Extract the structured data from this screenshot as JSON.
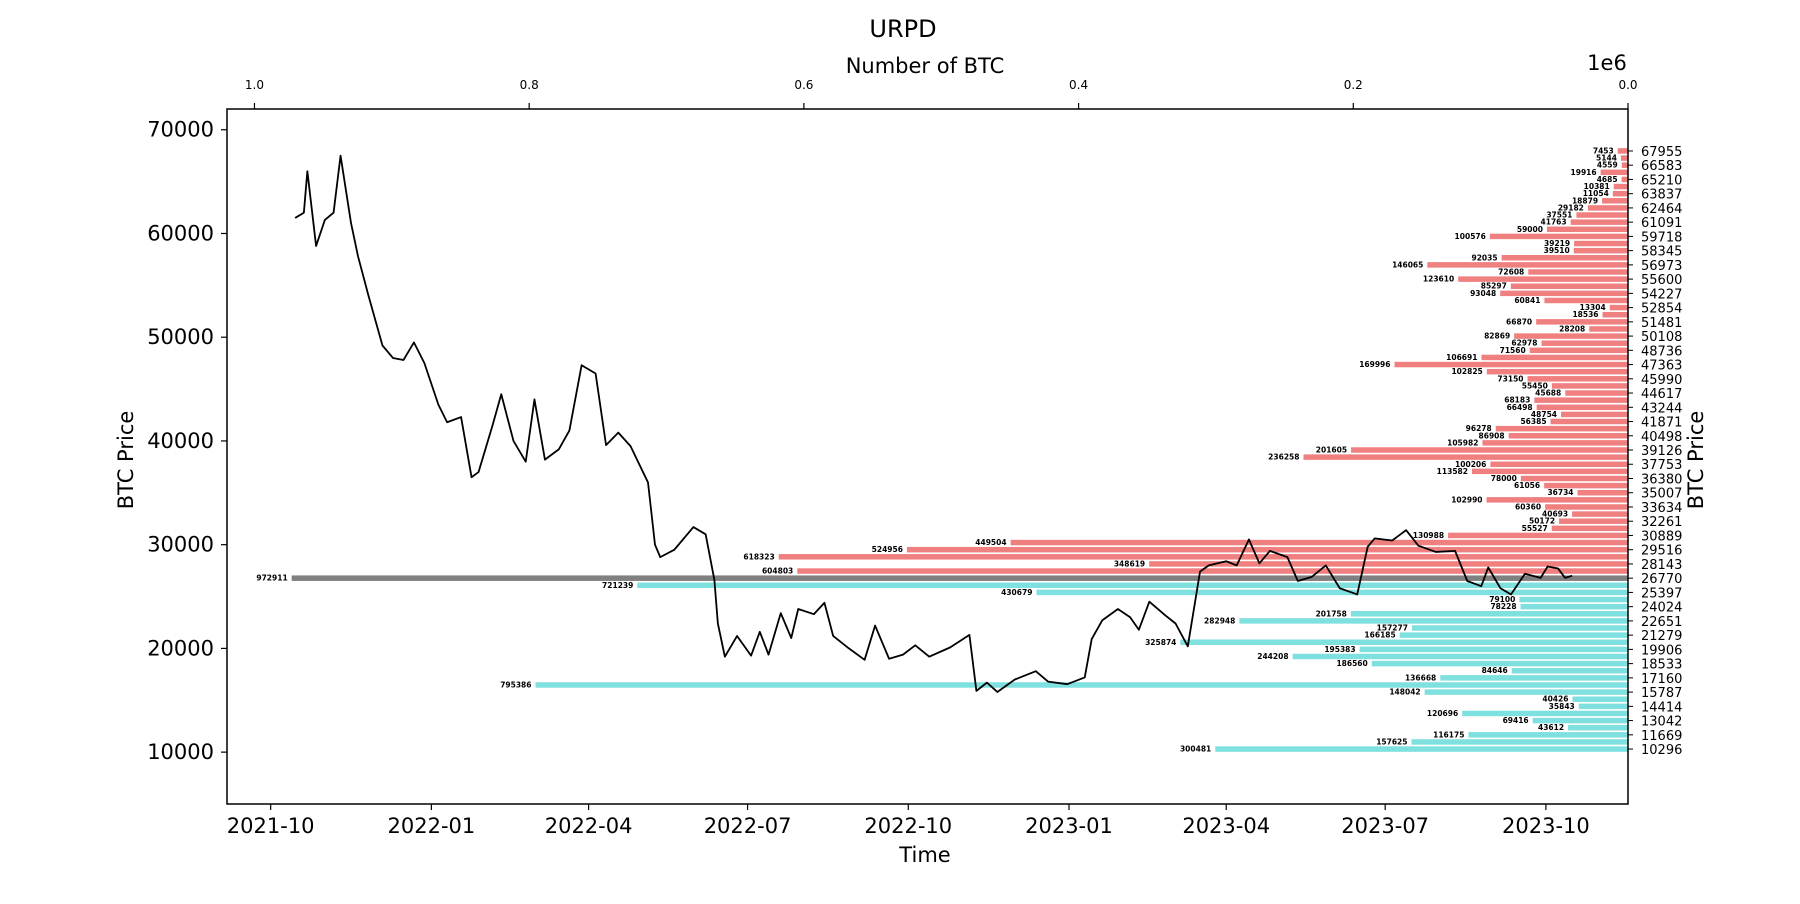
{
  "chart_data": {
    "type": "line",
    "title": "URPD",
    "xlabel": "Time",
    "ylabel": "BTC Price",
    "top_xlabel": "Number of BTC",
    "top_x_offset_label": "1e6",
    "right_ylabel": "BTC Price",
    "ylim": [
      5000,
      72000
    ],
    "yticks": [
      10000,
      20000,
      30000,
      40000,
      50000,
      60000,
      70000
    ],
    "xlim": [
      "2021-09-06",
      "2023-11-17"
    ],
    "xticks": [
      "2021-10",
      "2022-01",
      "2022-04",
      "2022-07",
      "2022-10",
      "2023-01",
      "2023-04",
      "2023-07",
      "2023-10"
    ],
    "top_xlim": [
      1.02,
      0.0
    ],
    "top_xticks": [
      "1.0",
      "0.8",
      "0.6",
      "0.4",
      "0.2",
      "0.0"
    ],
    "grid": false,
    "colors": {
      "price_line": "#000000",
      "above_current": "#f08080",
      "below_current": "#7fe0e0",
      "current": "#808080"
    },
    "series": [
      {
        "values": [
          [
            "2021-10-15",
            61500
          ],
          [
            "2021-10-20",
            62000
          ],
          [
            "2021-10-22",
            66000
          ],
          [
            "2021-10-27",
            58800
          ],
          [
            "2021-11-01",
            61300
          ],
          [
            "2021-11-06",
            62000
          ],
          [
            "2021-11-10",
            67500
          ],
          [
            "2021-11-16",
            61000
          ],
          [
            "2021-11-20",
            57800
          ],
          [
            "2021-11-26",
            54000
          ],
          [
            "2021-12-04",
            49200
          ],
          [
            "2021-12-10",
            48000
          ],
          [
            "2021-12-16",
            47800
          ],
          [
            "2021-12-22",
            49500
          ],
          [
            "2021-12-28",
            47500
          ],
          [
            "2022-01-05",
            43500
          ],
          [
            "2022-01-10",
            41800
          ],
          [
            "2022-01-18",
            42300
          ],
          [
            "2022-01-24",
            36500
          ],
          [
            "2022-01-28",
            37000
          ],
          [
            "2022-02-05",
            41500
          ],
          [
            "2022-02-10",
            44500
          ],
          [
            "2022-02-17",
            40000
          ],
          [
            "2022-02-24",
            38000
          ],
          [
            "2022-03-01",
            44000
          ],
          [
            "2022-03-07",
            38200
          ],
          [
            "2022-03-15",
            39200
          ],
          [
            "2022-03-21",
            41000
          ],
          [
            "2022-03-28",
            47300
          ],
          [
            "2022-04-05",
            46500
          ],
          [
            "2022-04-11",
            39600
          ],
          [
            "2022-04-18",
            40800
          ],
          [
            "2022-04-25",
            39500
          ],
          [
            "2022-05-05",
            36000
          ],
          [
            "2022-05-09",
            30000
          ],
          [
            "2022-05-12",
            28800
          ],
          [
            "2022-05-20",
            29500
          ],
          [
            "2022-05-31",
            31700
          ],
          [
            "2022-06-07",
            31000
          ],
          [
            "2022-06-12",
            26600
          ],
          [
            "2022-06-14",
            22400
          ],
          [
            "2022-06-18",
            19200
          ],
          [
            "2022-06-25",
            21200
          ],
          [
            "2022-07-03",
            19300
          ],
          [
            "2022-07-08",
            21600
          ],
          [
            "2022-07-13",
            19400
          ],
          [
            "2022-07-20",
            23400
          ],
          [
            "2022-07-26",
            21000
          ],
          [
            "2022-07-30",
            23800
          ],
          [
            "2022-08-08",
            23300
          ],
          [
            "2022-08-14",
            24400
          ],
          [
            "2022-08-19",
            21200
          ],
          [
            "2022-08-28",
            20000
          ],
          [
            "2022-09-06",
            18900
          ],
          [
            "2022-09-12",
            22200
          ],
          [
            "2022-09-20",
            19000
          ],
          [
            "2022-09-28",
            19400
          ],
          [
            "2022-10-05",
            20300
          ],
          [
            "2022-10-13",
            19200
          ],
          [
            "2022-10-25",
            20100
          ],
          [
            "2022-11-05",
            21300
          ],
          [
            "2022-11-09",
            15900
          ],
          [
            "2022-11-15",
            16700
          ],
          [
            "2022-11-21",
            15800
          ],
          [
            "2022-12-01",
            17000
          ],
          [
            "2022-12-13",
            17800
          ],
          [
            "2022-12-20",
            16800
          ],
          [
            "2022-12-31",
            16550
          ],
          [
            "2023-01-10",
            17200
          ],
          [
            "2023-01-14",
            20900
          ],
          [
            "2023-01-20",
            22700
          ],
          [
            "2023-01-29",
            23800
          ],
          [
            "2023-02-05",
            23000
          ],
          [
            "2023-02-10",
            21800
          ],
          [
            "2023-02-16",
            24500
          ],
          [
            "2023-02-25",
            23200
          ],
          [
            "2023-03-03",
            22400
          ],
          [
            "2023-03-10",
            20200
          ],
          [
            "2023-03-14",
            24300
          ],
          [
            "2023-03-17",
            27400
          ],
          [
            "2023-03-22",
            28000
          ],
          [
            "2023-04-01",
            28400
          ],
          [
            "2023-04-07",
            28000
          ],
          [
            "2023-04-14",
            30500
          ],
          [
            "2023-04-20",
            28200
          ],
          [
            "2023-04-26",
            29400
          ],
          [
            "2023-05-06",
            28800
          ],
          [
            "2023-05-12",
            26500
          ],
          [
            "2023-05-20",
            26900
          ],
          [
            "2023-05-28",
            28000
          ],
          [
            "2023-06-05",
            25800
          ],
          [
            "2023-06-15",
            25200
          ],
          [
            "2023-06-21",
            29800
          ],
          [
            "2023-06-25",
            30600
          ],
          [
            "2023-07-05",
            30400
          ],
          [
            "2023-07-13",
            31400
          ],
          [
            "2023-07-20",
            29900
          ],
          [
            "2023-07-30",
            29300
          ],
          [
            "2023-08-10",
            29400
          ],
          [
            "2023-08-17",
            26500
          ],
          [
            "2023-08-25",
            26000
          ],
          [
            "2023-08-29",
            27800
          ],
          [
            "2023-09-05",
            25800
          ],
          [
            "2023-09-11",
            25200
          ],
          [
            "2023-09-19",
            27200
          ],
          [
            "2023-09-28",
            26800
          ],
          [
            "2023-10-02",
            27900
          ],
          [
            "2023-10-08",
            27700
          ],
          [
            "2023-10-12",
            26800
          ],
          [
            "2023-10-16",
            27000
          ]
        ]
      }
    ],
    "urpd_bars": {
      "prices": [
        67955,
        66583,
        65210,
        63837,
        62464,
        61091,
        59718,
        58345,
        56973,
        55600,
        54227,
        52854,
        51481,
        50108,
        48736,
        47363,
        45990,
        44617,
        43244,
        41871,
        40498,
        39126,
        37753,
        36380,
        35007,
        33634,
        32261,
        30889,
        29516,
        28143,
        26770,
        25397,
        24024,
        22651,
        21279,
        19906,
        18533,
        17160,
        15787,
        14414,
        13042,
        11669,
        10296
      ],
      "current_price": 26770,
      "bars": [
        {
          "y": 67955,
          "value": 7453,
          "label": "7453"
        },
        {
          "y": 67269,
          "value": 5144,
          "label": "5144"
        },
        {
          "y": 66583,
          "value": 4559,
          "label": "4559"
        },
        {
          "y": 65897,
          "value": 19916,
          "label": "19916"
        },
        {
          "y": 65210,
          "value": 4685,
          "label": "4685"
        },
        {
          "y": 64524,
          "value": 10381,
          "label": "10381"
        },
        {
          "y": 63837,
          "value": 11054,
          "label": "11054"
        },
        {
          "y": 63151,
          "value": 18879,
          "label": "18879"
        },
        {
          "y": 62464,
          "value": 29182,
          "label": "29182"
        },
        {
          "y": 61778,
          "value": 37551,
          "label": "37551"
        },
        {
          "y": 61091,
          "value": 41763,
          "label": "41763"
        },
        {
          "y": 60405,
          "value": 59000,
          "label": "59000"
        },
        {
          "y": 59718,
          "value": 100576,
          "label": "100576"
        },
        {
          "y": 59032,
          "value": 39219,
          "label": "39219"
        },
        {
          "y": 58345,
          "value": 39510,
          "label": "39510"
        },
        {
          "y": 57659,
          "value": 92035,
          "label": "92035"
        },
        {
          "y": 56973,
          "value": 146065,
          "label": "146065"
        },
        {
          "y": 56287,
          "value": 72608,
          "label": "72608"
        },
        {
          "y": 55600,
          "value": 123610,
          "label": "123610"
        },
        {
          "y": 54914,
          "value": 85297,
          "label": "85297"
        },
        {
          "y": 54227,
          "value": 93048,
          "label": "93048"
        },
        {
          "y": 53541,
          "value": 60841,
          "label": "60841"
        },
        {
          "y": 52854,
          "value": 13304,
          "label": "13304"
        },
        {
          "y": 52168,
          "value": 18536,
          "label": "18536"
        },
        {
          "y": 51481,
          "value": 66870,
          "label": "66870"
        },
        {
          "y": 50795,
          "value": 28208,
          "label": "28208"
        },
        {
          "y": 50108,
          "value": 82869,
          "label": "82869"
        },
        {
          "y": 49422,
          "value": 62978,
          "label": "62978"
        },
        {
          "y": 48736,
          "value": 71560,
          "label": "71560"
        },
        {
          "y": 48050,
          "value": 106691,
          "label": "106691"
        },
        {
          "y": 47363,
          "value": 169996,
          "label": "169996"
        },
        {
          "y": 46677,
          "value": 102825,
          "label": "102825"
        },
        {
          "y": 45990,
          "value": 73150,
          "label": "73150"
        },
        {
          "y": 45304,
          "value": 55450,
          "label": "55450"
        },
        {
          "y": 44617,
          "value": 45688,
          "label": "45688"
        },
        {
          "y": 43931,
          "value": 68183,
          "label": "68183"
        },
        {
          "y": 43244,
          "value": 66498,
          "label": "66498"
        },
        {
          "y": 42558,
          "value": 48754,
          "label": "48754"
        },
        {
          "y": 41871,
          "value": 56385,
          "label": "56385"
        },
        {
          "y": 41185,
          "value": 96278,
          "label": "96278"
        },
        {
          "y": 40498,
          "value": 86908,
          "label": "86908"
        },
        {
          "y": 39812,
          "value": 105982,
          "label": "105982"
        },
        {
          "y": 39126,
          "value": 201605,
          "label": "201605"
        },
        {
          "y": 38440,
          "value": 236258,
          "label": "236258"
        },
        {
          "y": 37753,
          "value": 100206,
          "label": "100206"
        },
        {
          "y": 37067,
          "value": 113582,
          "label": "113582"
        },
        {
          "y": 36380,
          "value": 78000,
          "label": "78000"
        },
        {
          "y": 35694,
          "value": 61056,
          "label": "61056"
        },
        {
          "y": 35007,
          "value": 36734,
          "label": "36734"
        },
        {
          "y": 34321,
          "value": 102990,
          "label": "102990"
        },
        {
          "y": 33634,
          "value": 60360,
          "label": "60360"
        },
        {
          "y": 32948,
          "value": 40693,
          "label": "40693"
        },
        {
          "y": 32261,
          "value": 50172,
          "label": "50172"
        },
        {
          "y": 31575,
          "value": 55527,
          "label": "55527"
        },
        {
          "y": 30889,
          "value": 130988,
          "label": "130988"
        },
        {
          "y": 30203,
          "value": 449504,
          "label": "449504"
        },
        {
          "y": 29516,
          "value": 524956,
          "label": "524956"
        },
        {
          "y": 28830,
          "value": 618323,
          "label": "618323"
        },
        {
          "y": 28143,
          "value": 348619,
          "label": "348619"
        },
        {
          "y": 27457,
          "value": 604803,
          "label": "604803"
        },
        {
          "y": 26770,
          "value": 972911,
          "label": "972911"
        },
        {
          "y": 26084,
          "value": 721239,
          "label": "721239"
        },
        {
          "y": 25397,
          "value": 430679,
          "label": "430679"
        },
        {
          "y": 24711,
          "value": 79100,
          "label": "79100"
        },
        {
          "y": 24024,
          "value": 78228,
          "label": "78228"
        },
        {
          "y": 23338,
          "value": 201758,
          "label": "201758"
        },
        {
          "y": 22651,
          "value": 282948,
          "label": "282948"
        },
        {
          "y": 21965,
          "value": 157277,
          "label": "157277"
        },
        {
          "y": 21279,
          "value": 166185,
          "label": "166185"
        },
        {
          "y": 20593,
          "value": 325874,
          "label": "325874"
        },
        {
          "y": 19906,
          "value": 195383,
          "label": "195383"
        },
        {
          "y": 19220,
          "value": 244208,
          "label": "244208"
        },
        {
          "y": 18533,
          "value": 186560,
          "label": "186560"
        },
        {
          "y": 17847,
          "value": 84646,
          "label": "84646"
        },
        {
          "y": 17160,
          "value": 136668,
          "label": "136668"
        },
        {
          "y": 16474,
          "value": 795386,
          "label": "795386"
        },
        {
          "y": 15787,
          "value": 148042,
          "label": "148042"
        },
        {
          "y": 15101,
          "value": 40426,
          "label": "40426"
        },
        {
          "y": 14414,
          "value": 35843,
          "label": "35843"
        },
        {
          "y": 13728,
          "value": 120696,
          "label": "120696"
        },
        {
          "y": 13042,
          "value": 69416,
          "label": "69416"
        },
        {
          "y": 12356,
          "value": 43612,
          "label": "43612"
        },
        {
          "y": 11669,
          "value": 116175,
          "label": "116175"
        },
        {
          "y": 10983,
          "value": 157625,
          "label": "157625"
        },
        {
          "y": 10296,
          "value": 300481,
          "label": "300481"
        }
      ]
    }
  }
}
